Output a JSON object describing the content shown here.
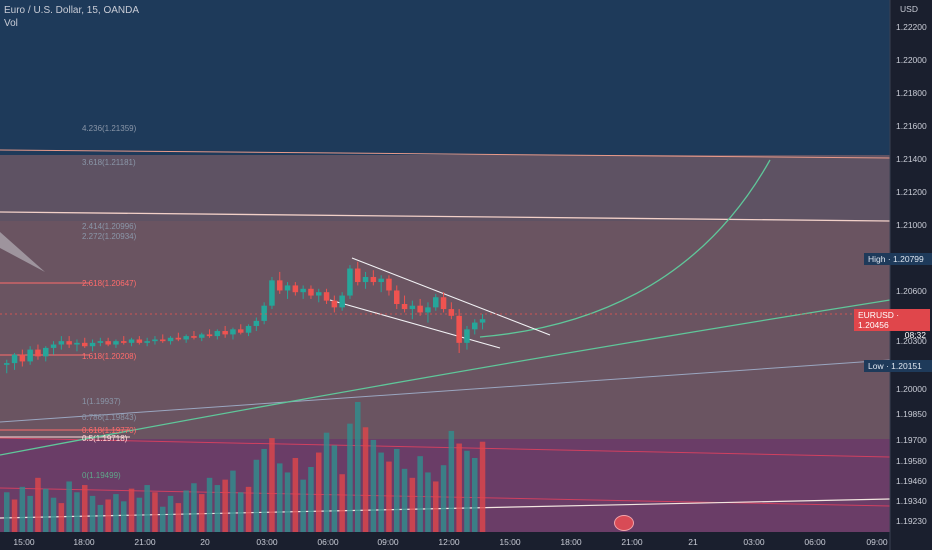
{
  "legend": {
    "symbol_line": "Euro / U.S. Dollar, 15, OANDA",
    "volume_line": "Vol"
  },
  "price_axis": {
    "currency": "USD",
    "ticks": [
      "1.22200",
      "1.22000",
      "1.21800",
      "1.21600",
      "1.21400",
      "1.21200",
      "1.21000",
      "1.20600",
      "1.20300",
      "1.20000",
      "1.19850",
      "1.19700",
      "1.19580",
      "1.19460",
      "1.19340",
      "1.19230"
    ],
    "high_tag": "High  ·  1.20799",
    "low_tag": "Low  ·  1.20151",
    "price_tag": "EURUSD · 1.20456",
    "countdown": "08:32"
  },
  "time_axis": {
    "ticks": [
      "15:00",
      "18:00",
      "21:00",
      "20",
      "03:00",
      "06:00",
      "09:00",
      "12:00",
      "15:00",
      "18:00",
      "21:00",
      "21",
      "03:00",
      "06:00",
      "09:00"
    ]
  },
  "fib_labels": [
    {
      "text": "4.236(1.21359)",
      "color": "#8a96a8"
    },
    {
      "text": "3.618(1.21181)",
      "color": "#8a96a8"
    },
    {
      "text": "2.414(1.20996)",
      "color": "#8a96a8"
    },
    {
      "text": "2.272(1.20934)",
      "color": "#8a96a8"
    },
    {
      "text": "2.618(1.20647)",
      "color": "#ff6b6b"
    },
    {
      "text": "1.618(1.20208)",
      "color": "#ff6b6b"
    },
    {
      "text": "1(1.19937)",
      "color": "#8a96a8"
    },
    {
      "text": "0.786(1.19843)",
      "color": "#8a96a8"
    },
    {
      "text": "0.618(1.19770)",
      "color": "#ff6b6b"
    },
    {
      "text": "0.5(1.19718)",
      "color": "#ffd9d9"
    },
    {
      "text": "0(1.19499)",
      "color": "#5fa88a"
    }
  ],
  "chart_data": {
    "type": "candlestick",
    "symbol": "Euro / U.S. Dollar",
    "interval": "15",
    "source": "OANDA",
    "y_axis_unit": "USD",
    "ylim": [
      1.192,
      1.2235
    ],
    "high": 1.20799,
    "low": 1.20151,
    "last_price": 1.20456,
    "candles_ohlc": [
      [
        1.2019,
        1.2022,
        1.2014,
        1.202
      ],
      [
        1.202,
        1.2026,
        1.2016,
        1.2025
      ],
      [
        1.2025,
        1.2028,
        1.2018,
        1.2021
      ],
      [
        1.2021,
        1.203,
        1.2019,
        1.2028
      ],
      [
        1.2028,
        1.2031,
        1.2022,
        1.2024
      ],
      [
        1.2024,
        1.203,
        1.2021,
        1.2029
      ],
      [
        1.2029,
        1.2033,
        1.2025,
        1.2031
      ],
      [
        1.2031,
        1.2036,
        1.2028,
        1.2033
      ],
      [
        1.2033,
        1.2036,
        1.2029,
        1.2031
      ],
      [
        1.2031,
        1.2034,
        1.2027,
        1.2032
      ],
      [
        1.2032,
        1.2035,
        1.2029,
        1.203
      ],
      [
        1.203,
        1.2034,
        1.2027,
        1.2032
      ],
      [
        1.2032,
        1.2035,
        1.203,
        1.2033
      ],
      [
        1.2033,
        1.2035,
        1.203,
        1.2031
      ],
      [
        1.2031,
        1.2034,
        1.2029,
        1.2033
      ],
      [
        1.2033,
        1.2036,
        1.2031,
        1.2032
      ],
      [
        1.2032,
        1.2035,
        1.203,
        1.2034
      ],
      [
        1.2034,
        1.2036,
        1.2031,
        1.2032
      ],
      [
        1.2032,
        1.2035,
        1.203,
        1.2033
      ],
      [
        1.2033,
        1.2036,
        1.2031,
        1.2034
      ],
      [
        1.2034,
        1.2037,
        1.2032,
        1.2033
      ],
      [
        1.2033,
        1.2036,
        1.2031,
        1.2035
      ],
      [
        1.2035,
        1.2038,
        1.2033,
        1.2034
      ],
      [
        1.2034,
        1.2037,
        1.2032,
        1.2036
      ],
      [
        1.2036,
        1.2039,
        1.2034,
        1.2035
      ],
      [
        1.2035,
        1.2038,
        1.2033,
        1.2037
      ],
      [
        1.2037,
        1.204,
        1.2035,
        1.2036
      ],
      [
        1.2036,
        1.204,
        1.2034,
        1.2039
      ],
      [
        1.2039,
        1.2042,
        1.2035,
        1.2037
      ],
      [
        1.2037,
        1.2041,
        1.2034,
        1.204
      ],
      [
        1.204,
        1.2043,
        1.2037,
        1.2038
      ],
      [
        1.2038,
        1.2043,
        1.2036,
        1.2042
      ],
      [
        1.2042,
        1.2047,
        1.2039,
        1.2045
      ],
      [
        1.2045,
        1.2056,
        1.2043,
        1.2054
      ],
      [
        1.2054,
        1.2071,
        1.2052,
        1.2069
      ],
      [
        1.2069,
        1.2074,
        1.2061,
        1.2063
      ],
      [
        1.2063,
        1.2068,
        1.2058,
        1.2066
      ],
      [
        1.2066,
        1.2068,
        1.206,
        1.2062
      ],
      [
        1.2062,
        1.2066,
        1.2058,
        1.2064
      ],
      [
        1.2064,
        1.2066,
        1.2058,
        1.206
      ],
      [
        1.206,
        1.2064,
        1.2056,
        1.2062
      ],
      [
        1.2062,
        1.2064,
        1.2055,
        1.2057
      ],
      [
        1.2057,
        1.206,
        1.205,
        1.2053
      ],
      [
        1.2053,
        1.2062,
        1.2051,
        1.206
      ],
      [
        1.206,
        1.2078,
        1.2058,
        1.2076
      ],
      [
        1.2076,
        1.208,
        1.2066,
        1.2068
      ],
      [
        1.2068,
        1.2074,
        1.2064,
        1.2071
      ],
      [
        1.2071,
        1.2075,
        1.2066,
        1.2068
      ],
      [
        1.2068,
        1.2072,
        1.2062,
        1.207
      ],
      [
        1.207,
        1.2072,
        1.206,
        1.2063
      ],
      [
        1.2063,
        1.2066,
        1.2052,
        1.2055
      ],
      [
        1.2055,
        1.206,
        1.205,
        1.2052
      ],
      [
        1.2052,
        1.2057,
        1.2046,
        1.2054
      ],
      [
        1.2054,
        1.2058,
        1.2048,
        1.205
      ],
      [
        1.205,
        1.2056,
        1.2044,
        1.2053
      ],
      [
        1.2053,
        1.2061,
        1.2051,
        1.2059
      ],
      [
        1.2059,
        1.2062,
        1.205,
        1.2052
      ],
      [
        1.2052,
        1.2056,
        1.2046,
        1.2048
      ],
      [
        1.2048,
        1.2052,
        1.2026,
        1.2032
      ],
      [
        1.2032,
        1.2042,
        1.2028,
        1.204
      ],
      [
        1.204,
        1.2046,
        1.2037,
        1.2044
      ],
      [
        1.2044,
        1.2049,
        1.204,
        1.2046
      ]
    ],
    "volume": [
      22,
      18,
      25,
      20,
      30,
      24,
      19,
      16,
      28,
      22,
      26,
      20,
      15,
      18,
      21,
      17,
      24,
      19,
      26,
      22,
      14,
      20,
      16,
      23,
      27,
      21,
      30,
      26,
      29,
      34,
      22,
      25,
      40,
      46,
      52,
      38,
      33,
      41,
      29,
      36,
      44,
      55,
      48,
      32,
      60,
      72,
      58,
      51,
      44,
      39,
      46,
      35,
      30,
      42,
      33,
      28,
      37,
      56,
      49,
      45,
      41,
      50
    ],
    "trendlines": [
      "falling wedge (descending channel)",
      "projected parabolic curve",
      "long-term ascending curve"
    ]
  }
}
